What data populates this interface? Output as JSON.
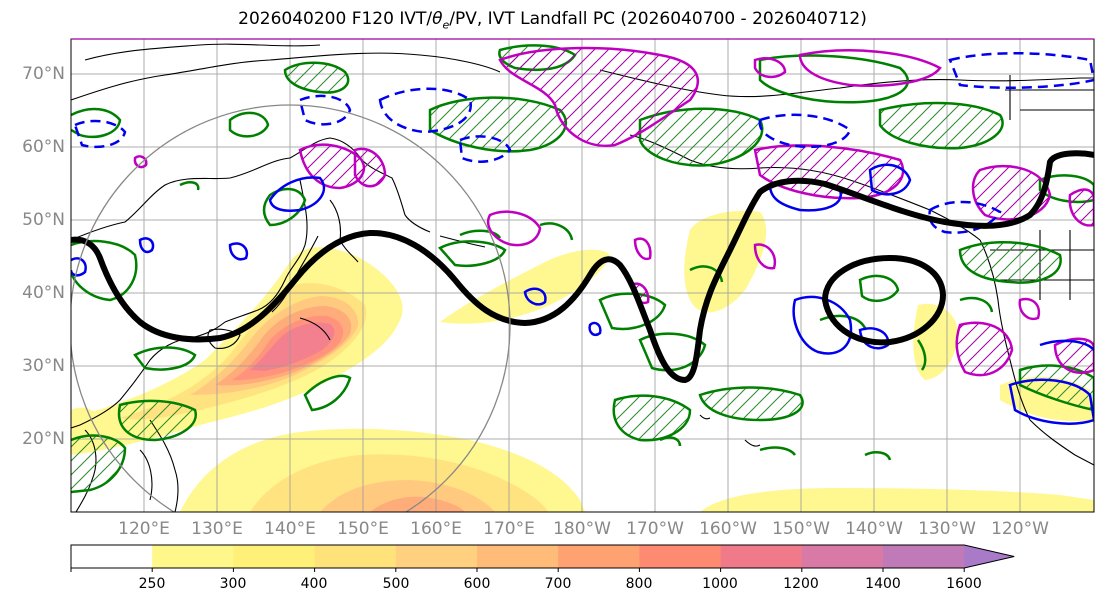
{
  "title": "2026040200 F120 IVT/θe/PV, IVT Landfall PC (2026040700 - 2026040712)",
  "title_parts": {
    "before": "2026040200 F120 IVT/",
    "theta": "θ",
    "sub": "e",
    "after": "/PV, IVT Landfall PC (2026040700 - 2026040712)"
  },
  "map": {
    "lat_labels": [
      "70°N",
      "60°N",
      "50°N",
      "40°N",
      "30°N",
      "20°N"
    ],
    "lon_labels": [
      "120°E",
      "130°E",
      "140°E",
      "150°E",
      "160°E",
      "170°E",
      "180°W",
      "170°W",
      "160°W",
      "150°W",
      "140°W",
      "130°W",
      "120°W"
    ],
    "label_color": "#888888",
    "ivt_shading_colors": [
      "#fff78a",
      "#ffe27a",
      "#ffd27a",
      "#ffb870",
      "#ffa070",
      "#ff8a70",
      "#f07890",
      "#d07ab0",
      "#b07ac8"
    ],
    "theta_e_color": "#008000",
    "pv_positive_color": "#c000c0",
    "pv_negative_color": "#0000ff",
    "landfall_pc_color": "#000000"
  },
  "colorbar": {
    "ticks": [
      "250",
      "300",
      "400",
      "500",
      "600",
      "700",
      "800",
      "1000",
      "1200",
      "1400",
      "1600"
    ],
    "colors": [
      "#fff78a",
      "#fff078",
      "#ffe27a",
      "#ffd080",
      "#ffbb78",
      "#ffa272",
      "#ff8a72",
      "#f07a8a",
      "#d97aa6",
      "#c07ab8",
      "#a97ac8"
    ]
  }
}
